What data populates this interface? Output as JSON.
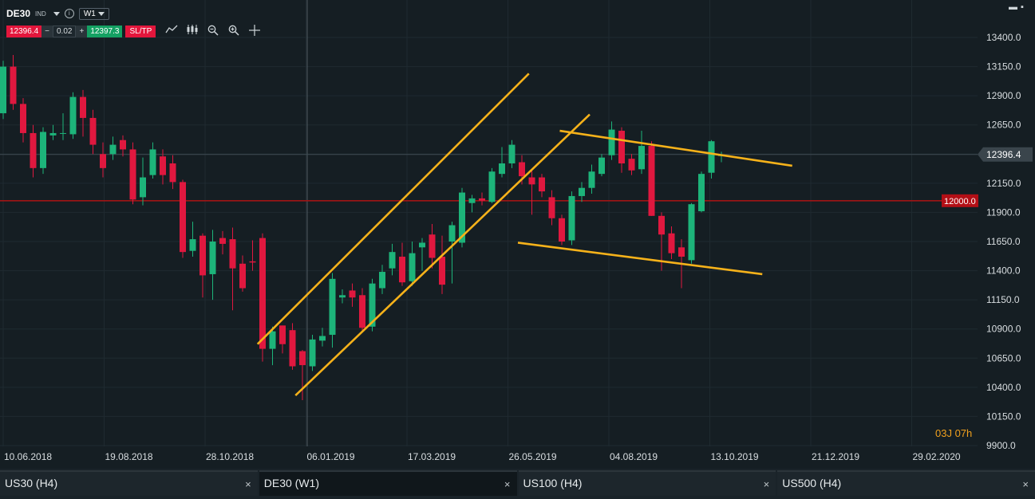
{
  "toolbar": {
    "symbol": "DE30",
    "symbol_type": "IND",
    "info_icon": "info-icon",
    "timeframe": "W1",
    "sell_price": "12396.4",
    "minus": "−",
    "quantity": "0.02",
    "plus": "+",
    "buy_price": "12397.3",
    "sltp_label": "SL/TP",
    "tools": [
      "line-chart-icon",
      "candlestick-icon",
      "zoom-out-icon",
      "zoom-in-icon",
      "crosshair-icon"
    ]
  },
  "window_controls": {
    "minimize": "▬",
    "maximize": "▪"
  },
  "countdown": "03J 07h",
  "price_label": "12396.4",
  "level_label": "12000.0",
  "chart_data": {
    "type": "candlestick",
    "symbol": "DE30",
    "timeframe": "W1",
    "y_ticks": [
      "13400.0",
      "13150.0",
      "12900.0",
      "12650.0",
      "12400.0",
      "12150.0",
      "11900.0",
      "11650.0",
      "11400.0",
      "11150.0",
      "10900.0",
      "10650.0",
      "10400.0",
      "10150.0",
      "9900.0"
    ],
    "ylim": [
      9900,
      13400
    ],
    "x_ticks": [
      "10.06.2018",
      "19.08.2018",
      "28.10.2018",
      "06.01.2019",
      "17.03.2019",
      "26.05.2019",
      "04.08.2019",
      "13.10.2019",
      "21.12.2019",
      "29.02.2020"
    ],
    "current_price": 12396.4,
    "horizontal_level": 12000.0,
    "candles": [
      [
        12750,
        13150,
        13200,
        12700
      ],
      [
        13150,
        12830,
        13250,
        12780
      ],
      [
        12830,
        12580,
        12880,
        12500
      ],
      [
        12580,
        12280,
        12650,
        12200
      ],
      [
        12280,
        12590,
        12630,
        12230
      ],
      [
        12560,
        12580,
        12650,
        12520
      ],
      [
        12580,
        12580,
        12750,
        12520
      ],
      [
        12570,
        12890,
        12930,
        12530
      ],
      [
        12890,
        12710,
        12950,
        12550
      ],
      [
        12710,
        12480,
        12780,
        12400
      ],
      [
        12400,
        12280,
        12500,
        12200
      ],
      [
        12400,
        12480,
        12550,
        12350
      ],
      [
        12520,
        12440,
        12560,
        12380
      ],
      [
        12440,
        12010,
        12500,
        11970
      ],
      [
        12030,
        12200,
        12370,
        11960
      ],
      [
        12220,
        12440,
        12500,
        12190
      ],
      [
        12380,
        12220,
        12440,
        12140
      ],
      [
        12320,
        12160,
        12390,
        12100
      ],
      [
        12160,
        11560,
        12180,
        11510
      ],
      [
        11570,
        11670,
        11820,
        11520
      ],
      [
        11700,
        11360,
        11720,
        11170
      ],
      [
        11370,
        11650,
        11750,
        11150
      ],
      [
        11680,
        11630,
        11740,
        11540
      ],
      [
        11670,
        11420,
        11770,
        11060
      ],
      [
        11460,
        11250,
        11530,
        11220
      ],
      [
        11480,
        11470,
        11660,
        11400
      ],
      [
        11680,
        10730,
        11720,
        10620
      ],
      [
        10730,
        10880,
        10920,
        10590
      ],
      [
        10930,
        10770,
        10930,
        10690
      ],
      [
        10890,
        10580,
        10950,
        10550
      ],
      [
        10710,
        10590,
        10720,
        10290
      ],
      [
        10580,
        10810,
        10850,
        10540
      ],
      [
        10800,
        10840,
        10910,
        10750
      ],
      [
        10850,
        11330,
        11380,
        10740
      ],
      [
        11170,
        11190,
        11240,
        11120
      ],
      [
        11230,
        11170,
        11290,
        11090
      ],
      [
        11190,
        10910,
        11250,
        10880
      ],
      [
        10920,
        11290,
        11330,
        10880
      ],
      [
        11250,
        11390,
        11450,
        11200
      ],
      [
        11420,
        11560,
        11630,
        11360
      ],
      [
        11520,
        11300,
        11640,
        11270
      ],
      [
        11310,
        11550,
        11650,
        11270
      ],
      [
        11600,
        11640,
        11680,
        11400
      ],
      [
        11710,
        11510,
        11800,
        11420
      ],
      [
        11520,
        11280,
        11700,
        11200
      ],
      [
        11650,
        11790,
        11820,
        11290
      ],
      [
        11640,
        12070,
        12110,
        11600
      ],
      [
        11980,
        12020,
        12050,
        11900
      ],
      [
        12020,
        12000,
        12070,
        11960
      ],
      [
        11990,
        12250,
        12280,
        11980
      ],
      [
        12230,
        12320,
        12460,
        12200
      ],
      [
        12320,
        12480,
        12520,
        12280
      ],
      [
        12330,
        12210,
        12390,
        12140
      ],
      [
        12200,
        12140,
        12260,
        11880
      ],
      [
        12200,
        12080,
        12230,
        12030
      ],
      [
        12030,
        11850,
        12090,
        11790
      ],
      [
        11850,
        11650,
        11880,
        11620
      ],
      [
        11660,
        12040,
        12080,
        11620
      ],
      [
        12040,
        12110,
        12160,
        11990
      ],
      [
        12110,
        12250,
        12310,
        12060
      ],
      [
        12230,
        12370,
        12400,
        12210
      ],
      [
        12390,
        12610,
        12680,
        12350
      ],
      [
        12600,
        12320,
        12630,
        12240
      ],
      [
        12360,
        12260,
        12400,
        12220
      ],
      [
        12270,
        12470,
        12600,
        12230
      ],
      [
        12470,
        11870,
        12510,
        11870
      ],
      [
        11870,
        11710,
        11900,
        11400
      ],
      [
        11720,
        11550,
        11780,
        11500
      ],
      [
        11600,
        11520,
        11670,
        11250
      ],
      [
        11490,
        11970,
        11980,
        11460
      ],
      [
        11910,
        12230,
        12250,
        11900
      ],
      [
        12240,
        12510,
        12520,
        12190
      ],
      [
        12390,
        12390,
        12420,
        12330
      ]
    ],
    "trendlines": [
      {
        "name": "channel-upper-1",
        "p1": [
          0,
          0
        ],
        "p2": [
          0,
          0
        ]
      },
      {
        "name": "channel-lower-1",
        "p1": [
          0,
          0
        ],
        "p2": [
          0,
          0
        ]
      }
    ]
  },
  "tabs": [
    {
      "label": "US30 (H4)",
      "close": "×"
    },
    {
      "label": "DE30 (W1)",
      "close": "×"
    },
    {
      "label": "US100 (H4)",
      "close": "×"
    },
    {
      "label": "US500 (H4)",
      "close": "×"
    }
  ]
}
